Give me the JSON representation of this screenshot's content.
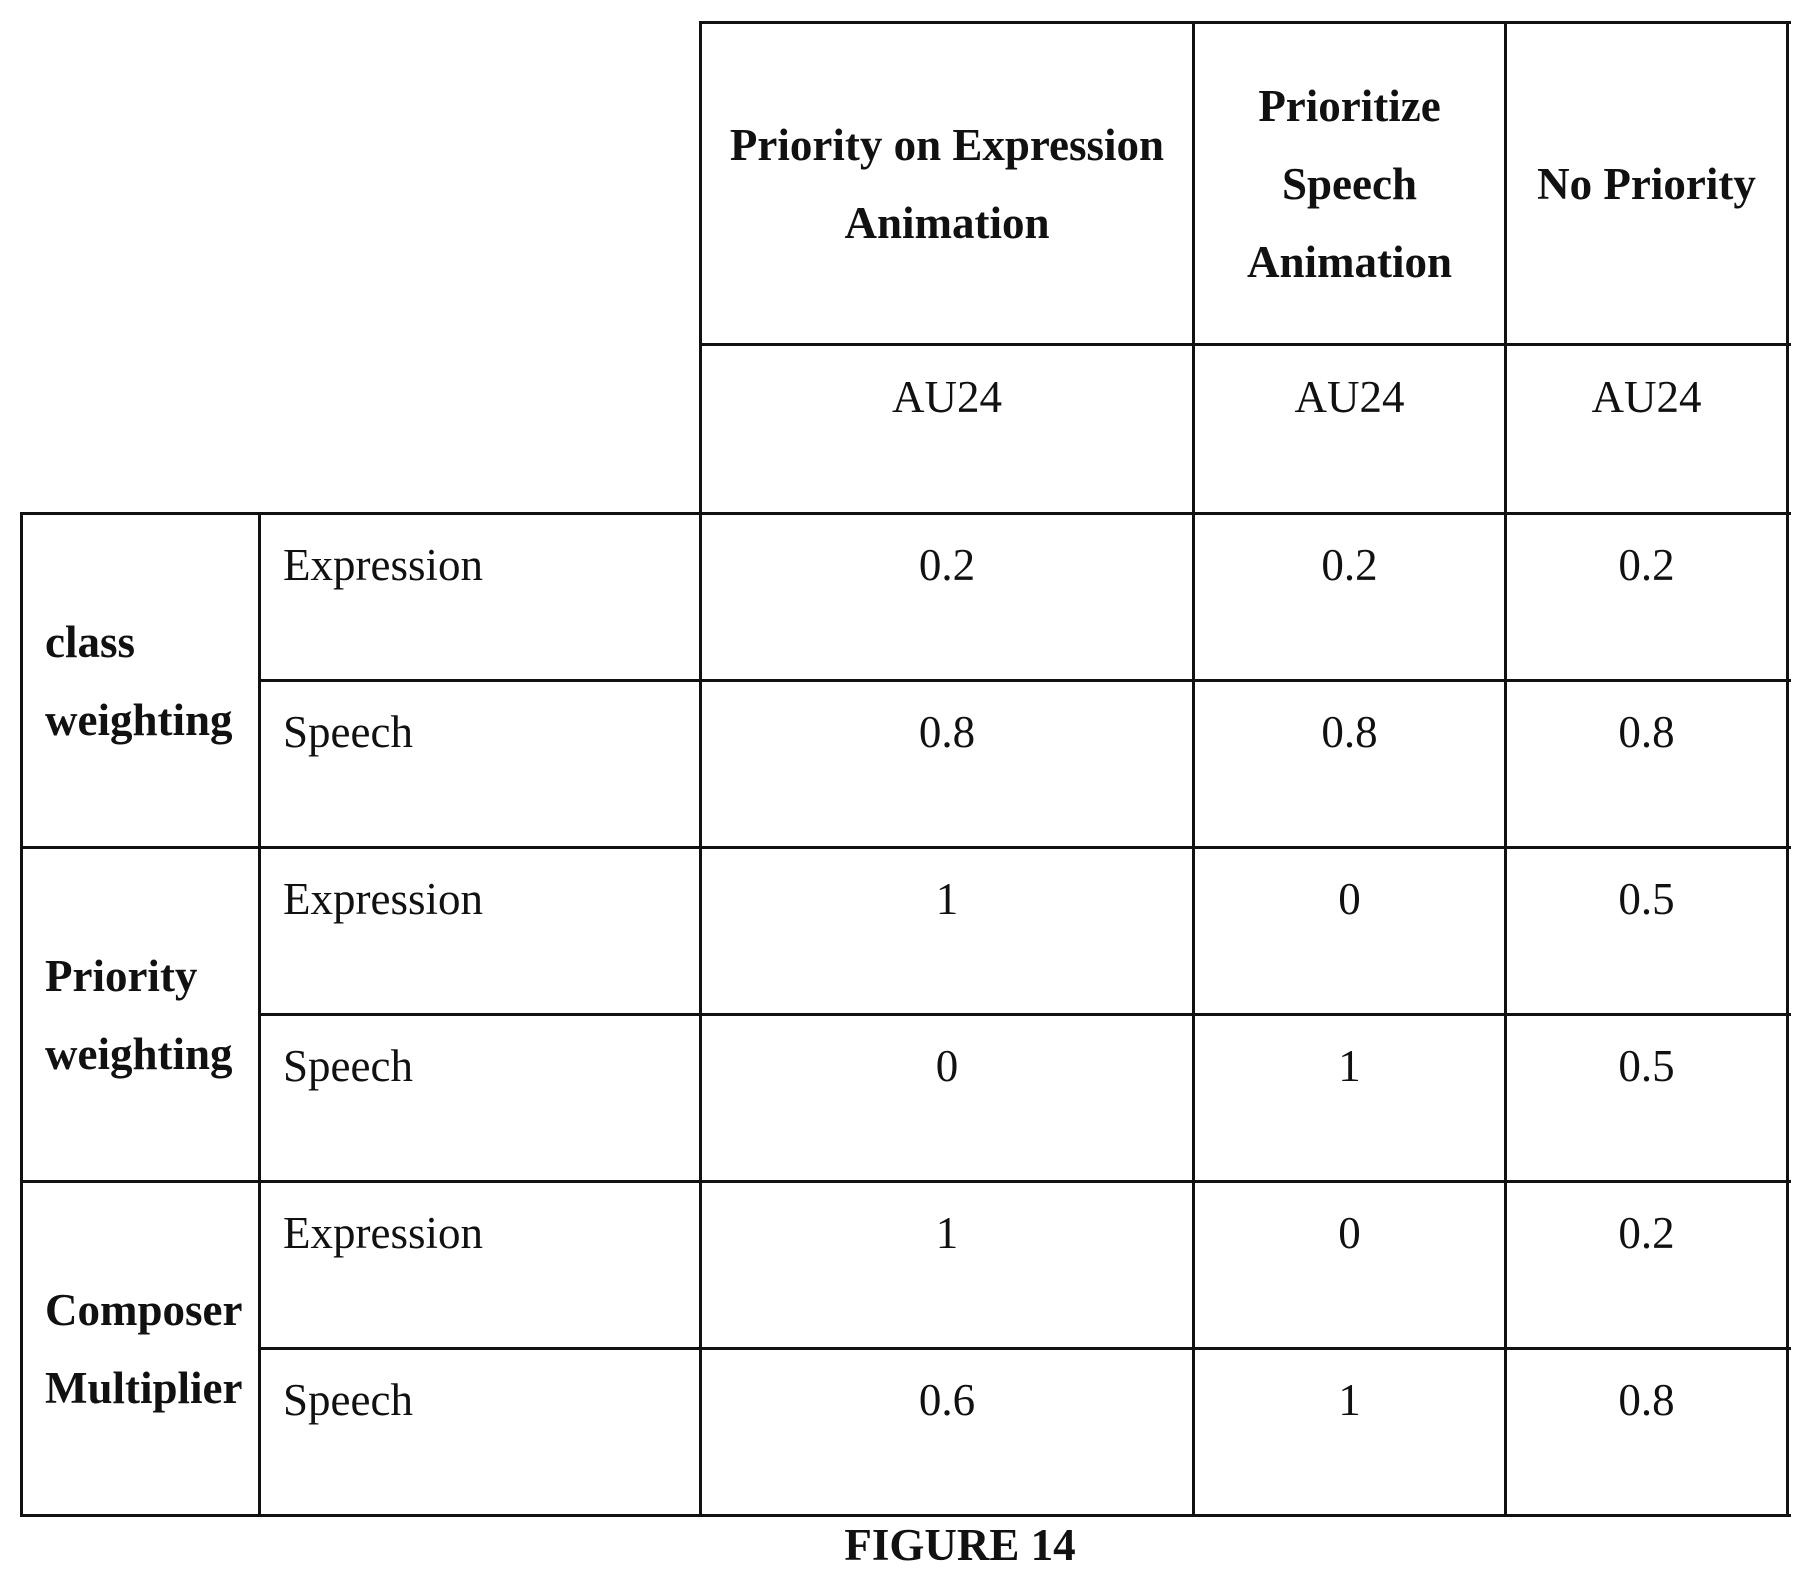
{
  "table": {
    "columns": [
      {
        "title": "Priority on Expression Animation",
        "unit": "AU24"
      },
      {
        "title": "Prioritize Speech Animation",
        "unit": "AU24"
      },
      {
        "title": "No Priority",
        "unit": "AU24"
      }
    ],
    "groups": [
      {
        "label": "class weighting",
        "rows": [
          {
            "label": "Expression",
            "values": [
              "0.2",
              "0.2",
              "0.2"
            ]
          },
          {
            "label": "Speech",
            "values": [
              "0.8",
              "0.8",
              "0.8"
            ]
          }
        ]
      },
      {
        "label": "Priority weighting",
        "rows": [
          {
            "label": "Expression",
            "values": [
              "1",
              "0",
              "0.5"
            ]
          },
          {
            "label": "Speech",
            "values": [
              "0",
              "1",
              "0.5"
            ]
          }
        ]
      },
      {
        "label": "Composer Multiplier",
        "rows": [
          {
            "label": "Expression",
            "values": [
              "1",
              "0",
              "0.2"
            ]
          },
          {
            "label": "Speech",
            "values": [
              "0.6",
              "1",
              "0.8"
            ]
          }
        ]
      }
    ]
  },
  "caption": "FIGURE 14"
}
